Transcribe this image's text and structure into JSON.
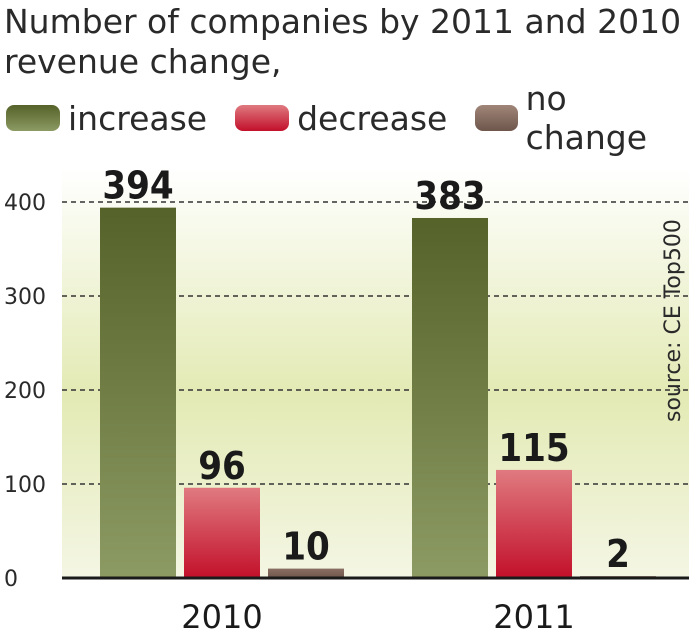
{
  "title_line1": "Number of companies by 2011 and 2010",
  "title_line2": "revenue change,",
  "source": "source: CE Top500",
  "colors": {
    "increase_top": "#55632a",
    "increase_bottom": "#8c9a63",
    "decrease_top": "#e07a80",
    "decrease_bottom": "#c2102a",
    "nochange": "#8a6e62",
    "background": "#e7edbd"
  },
  "chart_data": {
    "type": "bar",
    "title": "Number of companies by 2011 and 2010 revenue change,",
    "categories": [
      "2010",
      "2011"
    ],
    "series": [
      {
        "name": "increase",
        "values": [
          394,
          383
        ]
      },
      {
        "name": "decrease",
        "values": [
          96,
          115
        ]
      },
      {
        "name": "no change",
        "values": [
          10,
          2
        ]
      }
    ],
    "ylim": [
      0,
      400
    ],
    "yticks": [
      0,
      100,
      200,
      300,
      400
    ],
    "xlabel": "",
    "ylabel": "",
    "grid": true
  }
}
